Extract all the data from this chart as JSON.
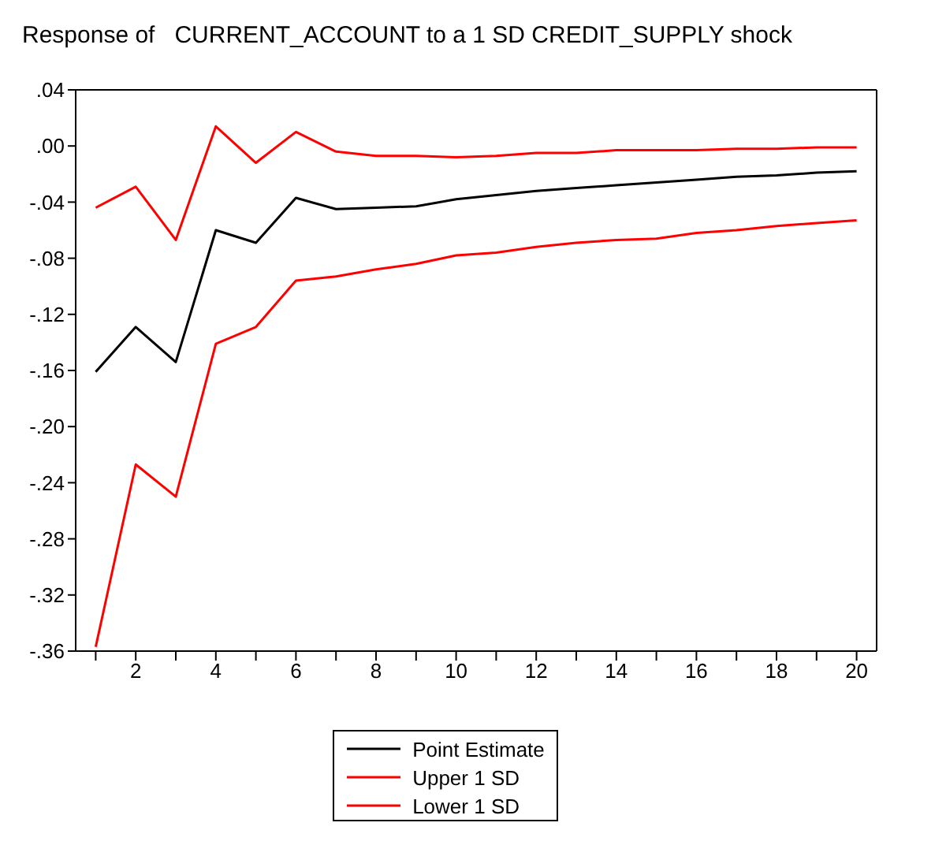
{
  "chart_data": {
    "type": "line",
    "title": "Response of   CURRENT_ACCOUNT to a 1 SD CREDIT_SUPPLY shock",
    "x": [
      1,
      2,
      3,
      4,
      5,
      6,
      7,
      8,
      9,
      10,
      11,
      12,
      13,
      14,
      15,
      16,
      17,
      18,
      19,
      20
    ],
    "series": [
      {
        "name": "Point Estimate",
        "color": "#000000",
        "values": [
          -0.161,
          -0.129,
          -0.154,
          -0.06,
          -0.069,
          -0.037,
          -0.045,
          -0.044,
          -0.043,
          -0.038,
          -0.035,
          -0.032,
          -0.03,
          -0.028,
          -0.026,
          -0.024,
          -0.022,
          -0.021,
          -0.019,
          -0.018
        ]
      },
      {
        "name": "Upper 1 SD",
        "color": "#ff0000",
        "values": [
          -0.044,
          -0.029,
          -0.067,
          0.014,
          -0.012,
          0.01,
          -0.004,
          -0.007,
          -0.007,
          -0.008,
          -0.007,
          -0.005,
          -0.005,
          -0.003,
          -0.003,
          -0.003,
          -0.002,
          -0.002,
          -0.001,
          -0.001
        ]
      },
      {
        "name": "Lower 1 SD",
        "color": "#ff0000",
        "values": [
          -0.357,
          -0.227,
          -0.25,
          -0.141,
          -0.129,
          -0.096,
          -0.093,
          -0.088,
          -0.084,
          -0.078,
          -0.076,
          -0.072,
          -0.069,
          -0.067,
          -0.066,
          -0.062,
          -0.06,
          -0.057,
          -0.055,
          -0.053
        ]
      }
    ],
    "xlim": [
      0.5,
      20.5
    ],
    "xticks": [
      {
        "value": 1,
        "label": null
      },
      2,
      {
        "value": 3,
        "label": null
      },
      4,
      {
        "value": 5,
        "label": null
      },
      6,
      {
        "value": 7,
        "label": null
      },
      8,
      {
        "value": 9,
        "label": null
      },
      10,
      {
        "value": 11,
        "label": null
      },
      12,
      {
        "value": 13,
        "label": null
      },
      14,
      {
        "value": 15,
        "label": null
      },
      16,
      {
        "value": 17,
        "label": null
      },
      18,
      {
        "value": 19,
        "label": null
      },
      20
    ],
    "ylim": [
      -0.36,
      0.04
    ],
    "yticks": [
      {
        "value": 0.04,
        "label": ".04"
      },
      {
        "value": 0,
        "label": ".00"
      },
      {
        "value": -0.04,
        "label": "-.04"
      },
      {
        "value": -0.08,
        "label": "-.08"
      },
      {
        "value": -0.12,
        "label": "-.12"
      },
      {
        "value": -0.16,
        "label": "-.16"
      },
      {
        "value": -0.2,
        "label": "-.20"
      },
      {
        "value": -0.24,
        "label": "-.24"
      },
      {
        "value": -0.28,
        "label": "-.28"
      },
      {
        "value": -0.32,
        "label": "-.32"
      },
      {
        "value": -0.36,
        "label": "-.36"
      }
    ],
    "grid": false,
    "legend": "bottom",
    "marker": "none",
    "line_style": "solid"
  }
}
